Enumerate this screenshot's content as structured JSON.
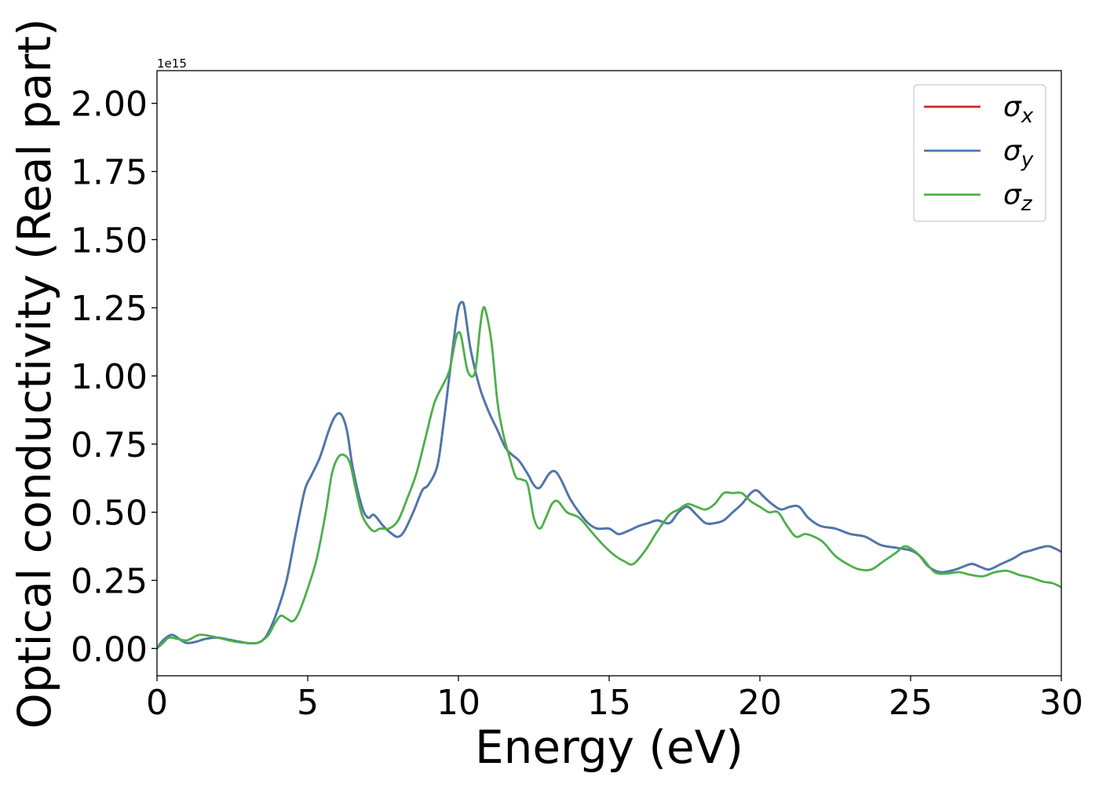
{
  "chart_data": {
    "type": "line",
    "title": "",
    "xlabel": "Energy (eV)",
    "ylabel": "Optical conductivity (Real part)",
    "y_offset_label": "1e15",
    "xlim": [
      0,
      30
    ],
    "ylim": [
      -0.1,
      2.12
    ],
    "x_ticks": [
      0,
      5,
      10,
      15,
      20,
      25,
      30
    ],
    "x_tick_labels": [
      "0",
      "5",
      "10",
      "15",
      "20",
      "25",
      "30"
    ],
    "y_ticks": [
      0.0,
      0.25,
      0.5,
      0.75,
      1.0,
      1.25,
      1.5,
      1.75,
      2.0
    ],
    "y_tick_labels": [
      "0.00",
      "0.25",
      "0.50",
      "0.75",
      "1.00",
      "1.25",
      "1.50",
      "1.75",
      "2.00"
    ],
    "grid": false,
    "legend_position": "top-right",
    "series": [
      {
        "symbol": "σ",
        "subscript": "x",
        "color": "#d62728",
        "x": [
          0,
          0.2,
          0.5,
          0.8,
          1.0,
          1.3,
          1.6,
          2.0,
          2.5,
          3.0,
          3.3,
          3.5,
          3.7,
          4.0,
          4.3,
          4.6,
          4.9,
          5.1,
          5.4,
          5.7,
          5.9,
          6.1,
          6.3,
          6.5,
          6.8,
          7.0,
          7.2,
          7.5,
          7.8,
          8.0,
          8.2,
          8.5,
          8.8,
          9.0,
          9.3,
          9.5,
          9.7,
          9.9,
          10.0,
          10.1,
          10.2,
          10.4,
          10.7,
          11.0,
          11.3,
          11.6,
          12.0,
          12.3,
          12.5,
          12.7,
          13.0,
          13.2,
          13.4,
          13.7,
          14.0,
          14.3,
          14.6,
          15.0,
          15.3,
          15.6,
          16.0,
          16.3,
          16.6,
          17.0,
          17.3,
          17.6,
          17.9,
          18.2,
          18.5,
          18.8,
          19.1,
          19.4,
          19.7,
          19.9,
          20.1,
          20.4,
          20.7,
          21.0,
          21.3,
          21.6,
          22.0,
          22.5,
          23.0,
          23.5,
          24.0,
          24.5,
          25.0,
          25.3,
          25.6,
          26.0,
          26.5,
          27.0,
          27.3,
          27.6,
          28.0,
          28.4,
          28.7,
          29.0,
          29.3,
          29.6,
          30.0
        ],
        "y": [
          0.0,
          0.03,
          0.05,
          0.03,
          0.02,
          0.025,
          0.035,
          0.04,
          0.03,
          0.02,
          0.02,
          0.03,
          0.06,
          0.14,
          0.25,
          0.42,
          0.58,
          0.63,
          0.7,
          0.8,
          0.85,
          0.86,
          0.8,
          0.66,
          0.52,
          0.48,
          0.49,
          0.45,
          0.42,
          0.41,
          0.43,
          0.5,
          0.58,
          0.6,
          0.67,
          0.82,
          1.0,
          1.18,
          1.25,
          1.27,
          1.25,
          1.1,
          0.96,
          0.87,
          0.8,
          0.73,
          0.69,
          0.64,
          0.6,
          0.59,
          0.64,
          0.65,
          0.62,
          0.55,
          0.5,
          0.46,
          0.44,
          0.44,
          0.42,
          0.43,
          0.45,
          0.46,
          0.47,
          0.46,
          0.5,
          0.52,
          0.49,
          0.46,
          0.46,
          0.47,
          0.5,
          0.53,
          0.57,
          0.58,
          0.56,
          0.53,
          0.51,
          0.52,
          0.52,
          0.48,
          0.45,
          0.44,
          0.42,
          0.41,
          0.38,
          0.37,
          0.36,
          0.34,
          0.3,
          0.28,
          0.29,
          0.31,
          0.3,
          0.29,
          0.31,
          0.33,
          0.35,
          0.36,
          0.37,
          0.375,
          0.355
        ]
      },
      {
        "symbol": "σ",
        "subscript": "y",
        "color": "#4a78b0",
        "x": [
          0,
          0.2,
          0.5,
          0.8,
          1.0,
          1.3,
          1.6,
          2.0,
          2.5,
          3.0,
          3.3,
          3.5,
          3.7,
          4.0,
          4.3,
          4.6,
          4.9,
          5.1,
          5.4,
          5.7,
          5.9,
          6.1,
          6.3,
          6.5,
          6.8,
          7.0,
          7.2,
          7.5,
          7.8,
          8.0,
          8.2,
          8.5,
          8.8,
          9.0,
          9.3,
          9.5,
          9.7,
          9.9,
          10.0,
          10.1,
          10.2,
          10.4,
          10.7,
          11.0,
          11.3,
          11.6,
          12.0,
          12.3,
          12.5,
          12.7,
          13.0,
          13.2,
          13.4,
          13.7,
          14.0,
          14.3,
          14.6,
          15.0,
          15.3,
          15.6,
          16.0,
          16.3,
          16.6,
          17.0,
          17.3,
          17.6,
          17.9,
          18.2,
          18.5,
          18.8,
          19.1,
          19.4,
          19.7,
          19.9,
          20.1,
          20.4,
          20.7,
          21.0,
          21.3,
          21.6,
          22.0,
          22.5,
          23.0,
          23.5,
          24.0,
          24.5,
          25.0,
          25.3,
          25.6,
          26.0,
          26.5,
          27.0,
          27.3,
          27.6,
          28.0,
          28.4,
          28.7,
          29.0,
          29.3,
          29.6,
          30.0
        ],
        "y": [
          0.0,
          0.03,
          0.05,
          0.03,
          0.02,
          0.025,
          0.035,
          0.04,
          0.03,
          0.02,
          0.02,
          0.03,
          0.06,
          0.14,
          0.25,
          0.42,
          0.58,
          0.63,
          0.7,
          0.8,
          0.85,
          0.86,
          0.8,
          0.66,
          0.52,
          0.48,
          0.49,
          0.45,
          0.42,
          0.41,
          0.43,
          0.5,
          0.58,
          0.6,
          0.67,
          0.82,
          1.0,
          1.18,
          1.25,
          1.27,
          1.25,
          1.1,
          0.96,
          0.87,
          0.8,
          0.73,
          0.69,
          0.64,
          0.6,
          0.59,
          0.64,
          0.65,
          0.62,
          0.55,
          0.5,
          0.46,
          0.44,
          0.44,
          0.42,
          0.43,
          0.45,
          0.46,
          0.47,
          0.46,
          0.5,
          0.52,
          0.49,
          0.46,
          0.46,
          0.47,
          0.5,
          0.53,
          0.57,
          0.58,
          0.56,
          0.53,
          0.51,
          0.52,
          0.52,
          0.48,
          0.45,
          0.44,
          0.42,
          0.41,
          0.38,
          0.37,
          0.36,
          0.34,
          0.3,
          0.28,
          0.29,
          0.31,
          0.3,
          0.29,
          0.31,
          0.33,
          0.35,
          0.36,
          0.37,
          0.375,
          0.355
        ]
      },
      {
        "symbol": "σ",
        "subscript": "z",
        "color": "#4daf4a",
        "x": [
          0,
          0.2,
          0.4,
          0.7,
          1.0,
          1.4,
          1.8,
          2.2,
          2.6,
          3.0,
          3.3,
          3.5,
          3.7,
          3.9,
          4.1,
          4.3,
          4.5,
          4.7,
          5.0,
          5.3,
          5.6,
          5.8,
          6.0,
          6.2,
          6.4,
          6.6,
          6.8,
          7.0,
          7.2,
          7.4,
          7.7,
          8.0,
          8.3,
          8.6,
          8.9,
          9.2,
          9.5,
          9.7,
          9.9,
          10.0,
          10.1,
          10.3,
          10.5,
          10.6,
          10.7,
          10.8,
          10.9,
          11.1,
          11.3,
          11.5,
          11.7,
          11.9,
          12.1,
          12.3,
          12.5,
          12.7,
          12.9,
          13.1,
          13.3,
          13.6,
          14.0,
          14.4,
          14.8,
          15.2,
          15.5,
          15.8,
          16.2,
          16.6,
          17.0,
          17.3,
          17.6,
          17.9,
          18.2,
          18.5,
          18.8,
          19.1,
          19.4,
          19.7,
          20.0,
          20.3,
          20.6,
          20.9,
          21.2,
          21.5,
          21.8,
          22.1,
          22.5,
          22.9,
          23.3,
          23.7,
          24.1,
          24.5,
          24.8,
          25.1,
          25.4,
          25.8,
          26.2,
          26.6,
          27.0,
          27.4,
          27.8,
          28.2,
          28.6,
          29.0,
          29.4,
          29.7,
          30.0
        ],
        "y": [
          0.0,
          0.02,
          0.04,
          0.035,
          0.03,
          0.05,
          0.045,
          0.035,
          0.025,
          0.02,
          0.02,
          0.03,
          0.05,
          0.09,
          0.12,
          0.11,
          0.1,
          0.13,
          0.22,
          0.33,
          0.5,
          0.64,
          0.7,
          0.71,
          0.68,
          0.58,
          0.49,
          0.45,
          0.43,
          0.44,
          0.44,
          0.47,
          0.55,
          0.64,
          0.77,
          0.9,
          0.97,
          1.02,
          1.13,
          1.16,
          1.14,
          1.02,
          1.0,
          1.05,
          1.16,
          1.24,
          1.24,
          1.12,
          0.9,
          0.78,
          0.7,
          0.63,
          0.62,
          0.6,
          0.48,
          0.44,
          0.48,
          0.53,
          0.54,
          0.5,
          0.48,
          0.43,
          0.38,
          0.34,
          0.32,
          0.31,
          0.36,
          0.43,
          0.49,
          0.51,
          0.53,
          0.52,
          0.51,
          0.53,
          0.57,
          0.57,
          0.57,
          0.54,
          0.52,
          0.5,
          0.5,
          0.45,
          0.41,
          0.42,
          0.41,
          0.39,
          0.34,
          0.31,
          0.29,
          0.29,
          0.32,
          0.35,
          0.375,
          0.36,
          0.33,
          0.28,
          0.275,
          0.28,
          0.27,
          0.265,
          0.28,
          0.285,
          0.27,
          0.26,
          0.245,
          0.24,
          0.225
        ]
      }
    ]
  }
}
